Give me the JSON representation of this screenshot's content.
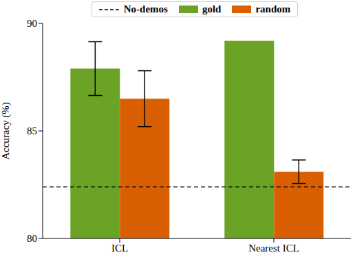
{
  "chart_data": {
    "type": "bar",
    "y_label": "Accuracy (%)",
    "categories": [
      "ICL",
      "Nearest ICL"
    ],
    "series": [
      {
        "name": "gold",
        "color": "#6aa325",
        "values": [
          87.9,
          89.2
        ],
        "errors": [
          1.25,
          0
        ]
      },
      {
        "name": "random",
        "color": "#da5f02",
        "values": [
          86.5,
          83.1
        ],
        "errors": [
          1.3,
          0.55
        ]
      }
    ],
    "baseline": {
      "name": "No-demos",
      "value": 82.4,
      "color": "#000000",
      "line_style": "dashed"
    },
    "ylim": [
      80,
      90
    ],
    "yticks": [
      80,
      85,
      90
    ],
    "grid": false,
    "legend": "upper center"
  }
}
